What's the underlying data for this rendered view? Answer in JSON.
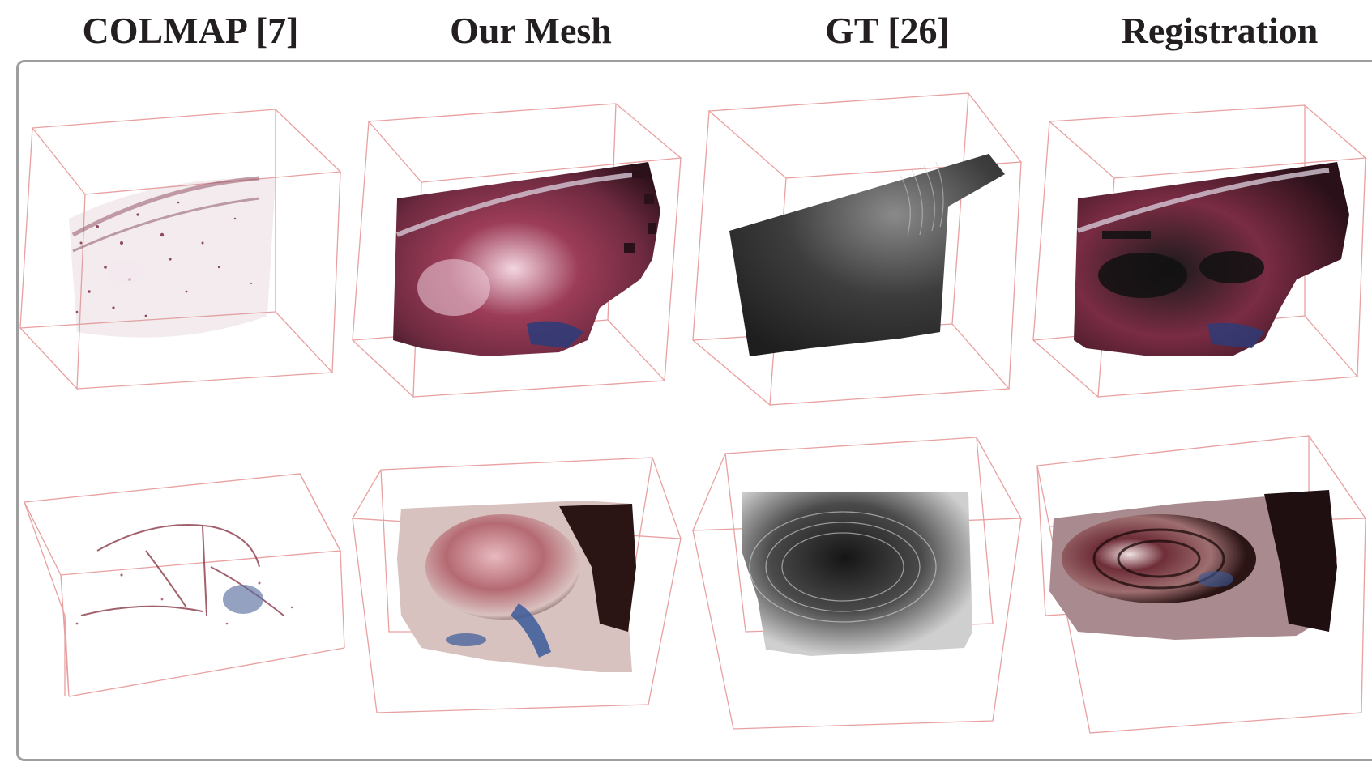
{
  "figure": {
    "column_titles": [
      "COLMAP [7]",
      "Our Mesh",
      "GT [26]",
      "Registration"
    ],
    "rows": 2,
    "panels": [
      {
        "row": 0,
        "column": "COLMAP [7]",
        "kind": "sparse-point-cloud",
        "tint": "#8b3a4e"
      },
      {
        "row": 0,
        "column": "Our Mesh",
        "kind": "textured-mesh",
        "tint": "#8e3a52"
      },
      {
        "row": 0,
        "column": "GT [26]",
        "kind": "grayscale-depth",
        "tint": "#2b2b2b"
      },
      {
        "row": 0,
        "column": "Registration",
        "kind": "overlay",
        "tint": "#7a2c44"
      },
      {
        "row": 1,
        "column": "COLMAP [7]",
        "kind": "sparse-point-cloud",
        "tint": "#9a4a55"
      },
      {
        "row": 1,
        "column": "Our Mesh",
        "kind": "textured-mesh",
        "tint": "#b06a72"
      },
      {
        "row": 1,
        "column": "GT [26]",
        "kind": "grayscale-depth",
        "tint": "#3a3a3a"
      },
      {
        "row": 1,
        "column": "Registration",
        "kind": "overlay",
        "tint": "#6e2e38"
      }
    ],
    "colors": {
      "bounding_box": "#e8a0a0",
      "frame": "#9e9e9e",
      "title": "#231f20"
    }
  }
}
